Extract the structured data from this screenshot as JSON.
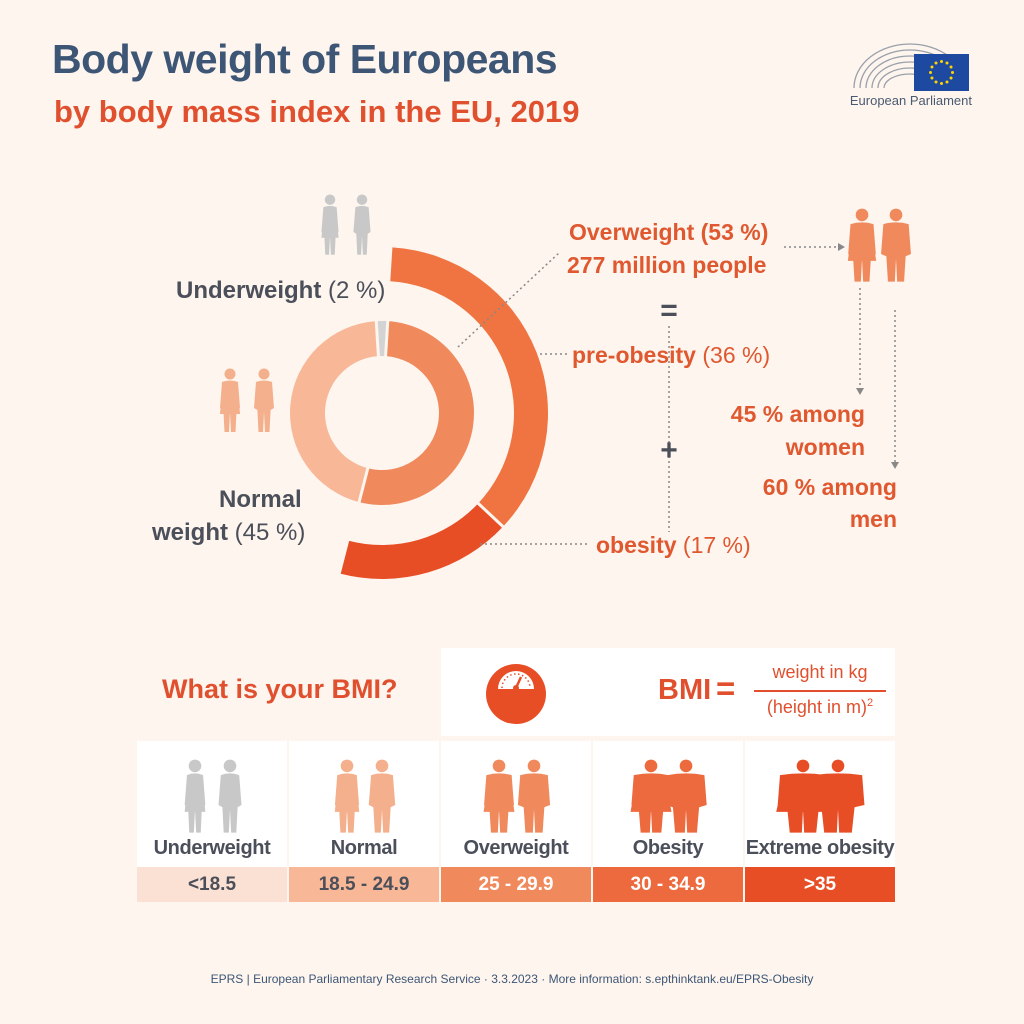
{
  "header": {
    "title": "Body weight of Europeans",
    "subtitle": "by body mass index in the EU, 2019"
  },
  "logo": {
    "text": "European Parliament",
    "icon": "european-parliament-hemicycle-and-eu-flag"
  },
  "chart_data": {
    "type": "pie",
    "title": "Body weight of Europeans",
    "subtitle": "by body mass index in the EU, 2019",
    "inner_ring": [
      {
        "name": "Underweight",
        "value": 2
      },
      {
        "name": "Normal weight",
        "value": 45
      },
      {
        "name": "Overweight",
        "value": 53
      }
    ],
    "outer_ring": [
      {
        "name": "pre-obesity",
        "value": 36
      },
      {
        "name": "obesity",
        "value": 17
      }
    ],
    "colors": {
      "underweight": "#d3d3d3",
      "normal": "#f8b898",
      "overweight": "#f08a5d",
      "pre_obesity": "#f07441",
      "obesity": "#e84e26"
    },
    "labels": {
      "underweight_name": "Underweight",
      "underweight_pct": "(2 %)",
      "normal_line1": "Normal",
      "normal_line2": "weight",
      "normal_pct": "(45 %)",
      "overweight": "Overweight (53 %)",
      "overweight_people": "277 million people",
      "equals": "=",
      "plus": "+",
      "pre_obesity_name": "pre-obesity",
      "pre_obesity_pct": "(36 %)",
      "obesity_name": "obesity",
      "obesity_pct": "(17 %)",
      "women_line1": "45 % among",
      "women_line2": "women",
      "men_line1": "60 % among",
      "men_line2": "men"
    }
  },
  "bmi": {
    "question": "What is your BMI?",
    "formula": {
      "label": "BMI",
      "equals": "=",
      "numerator": "weight in kg",
      "denominator": "(height in m)",
      "exponent": "2"
    },
    "icon": "scale-icon",
    "categories": [
      {
        "label": "Underweight",
        "range": "<18.5",
        "color": "#fbe1d3",
        "figure_color": "#c8c8c8",
        "text_color": "#4b4f59"
      },
      {
        "label": "Normal",
        "range": "18.5 - 24.9",
        "color": "#f8b898",
        "figure_color": "#f4b08c",
        "text_color": "#4b4f59"
      },
      {
        "label": "Overweight",
        "range": "25 - 29.9",
        "color": "#f08a5d",
        "figure_color": "#f08a5d",
        "text_color": "#ffffff"
      },
      {
        "label": "Obesity",
        "range": "30 - 34.9",
        "color": "#ec6a3d",
        "figure_color": "#ec6a3d",
        "text_color": "#ffffff"
      },
      {
        "label": "Extreme obesity",
        "range": ">35",
        "color": "#e84e26",
        "figure_color": "#e84e26",
        "text_color": "#ffffff"
      }
    ]
  },
  "footer": {
    "text": "EPRS | European Parliamentary Research Service · 3.3.2023 · More information: s.epthinktank.eu/EPRS-Obesity"
  }
}
